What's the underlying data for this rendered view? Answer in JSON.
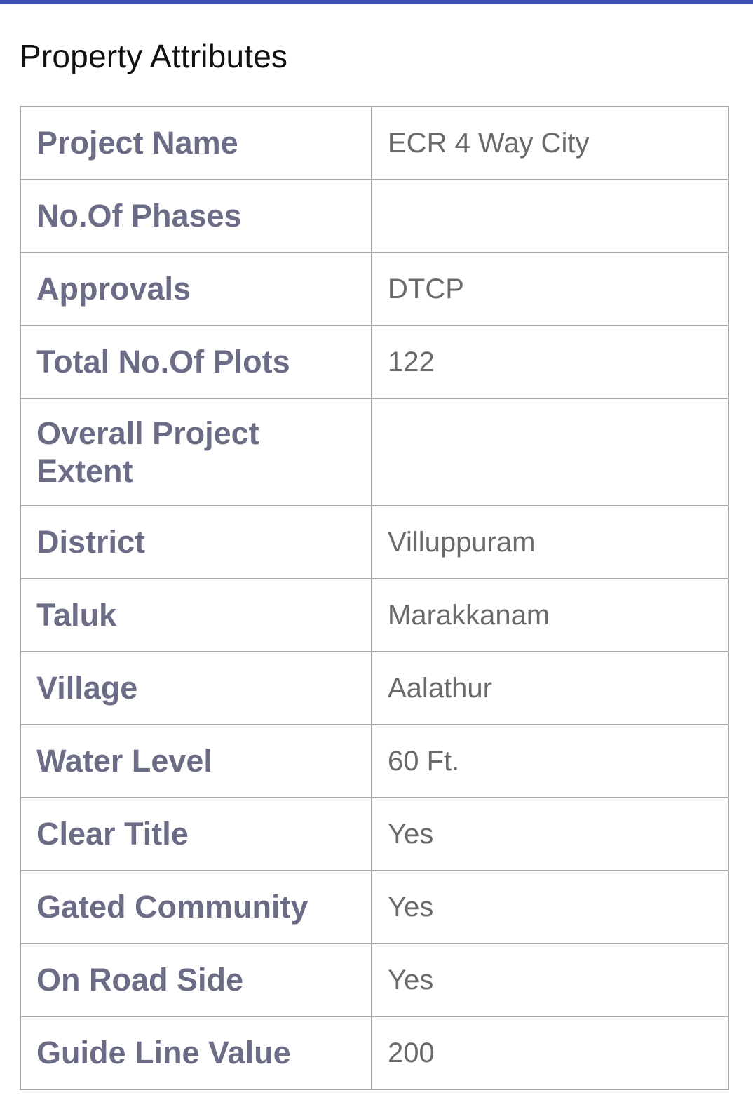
{
  "section_title": "Property Attributes",
  "colors": {
    "accent_bar": "#3f51b5",
    "label_text": "#6b6d86",
    "value_text": "#6a6a6a",
    "border": "#a8a8a8"
  },
  "attributes": [
    {
      "label": "Project Name",
      "value": "ECR 4 Way City"
    },
    {
      "label": "No.Of Phases",
      "value": ""
    },
    {
      "label": "Approvals",
      "value": "DTCP"
    },
    {
      "label": "Total No.Of Plots",
      "value": "122"
    },
    {
      "label": "Overall Project Extent",
      "value": ""
    },
    {
      "label": "District",
      "value": "Villuppuram"
    },
    {
      "label": "Taluk",
      "value": "Marakkanam"
    },
    {
      "label": "Village",
      "value": "Aalathur"
    },
    {
      "label": "Water Level",
      "value": "60 Ft."
    },
    {
      "label": "Clear Title",
      "value": "Yes"
    },
    {
      "label": "Gated Community",
      "value": "Yes"
    },
    {
      "label": "On Road Side",
      "value": "Yes"
    },
    {
      "label": "Guide Line Value",
      "value": "200"
    }
  ]
}
